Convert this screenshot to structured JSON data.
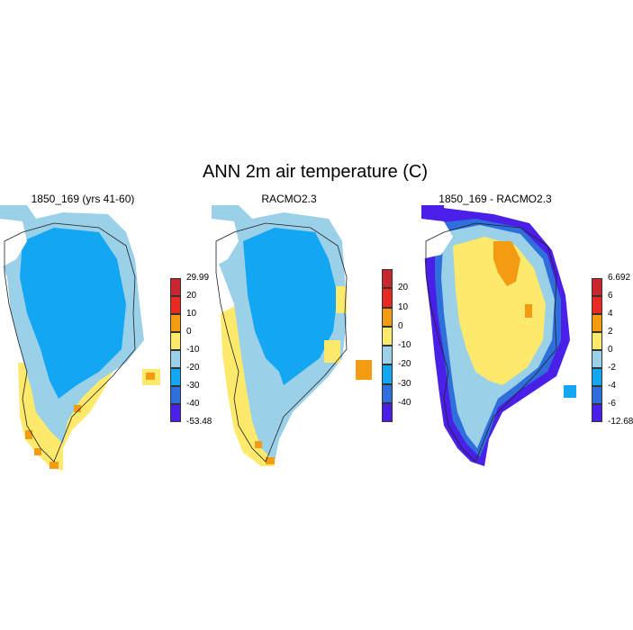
{
  "figure_title": "ANN 2m air temperature (C)",
  "panels": [
    {
      "title": "1850_169 (yrs 41-60)",
      "colorbar_labels": [
        "29.99",
        "20",
        "10",
        "0",
        "-10",
        "-20",
        "-30",
        "-40",
        "-53.48"
      ],
      "colorbar_colors": [
        "#c8282d",
        "#e82a23",
        "#f39c12",
        "#fde96b",
        "#9ad0e8",
        "#12a6f3",
        "#2f6fdc",
        "#4a1fe8"
      ]
    },
    {
      "title": "RACMO2.3",
      "colorbar_labels": [
        "20",
        "10",
        "0",
        "-10",
        "-20",
        "-30",
        "-40"
      ],
      "colorbar_colors": [
        "#c8282d",
        "#e82a23",
        "#f39c12",
        "#fde96b",
        "#9ad0e8",
        "#12a6f3",
        "#2f6fdc",
        "#4a1fe8"
      ]
    },
    {
      "title": "1850_169 - RACMO2.3",
      "colorbar_labels": [
        "6.692",
        "6",
        "4",
        "2",
        "0",
        "-2",
        "-4",
        "-6",
        "-12.68"
      ],
      "colorbar_colors": [
        "#c8282d",
        "#e82a23",
        "#f39c12",
        "#fde96b",
        "#9ad0e8",
        "#12a6f3",
        "#2f6fdc",
        "#4a1fe8"
      ]
    }
  ]
}
